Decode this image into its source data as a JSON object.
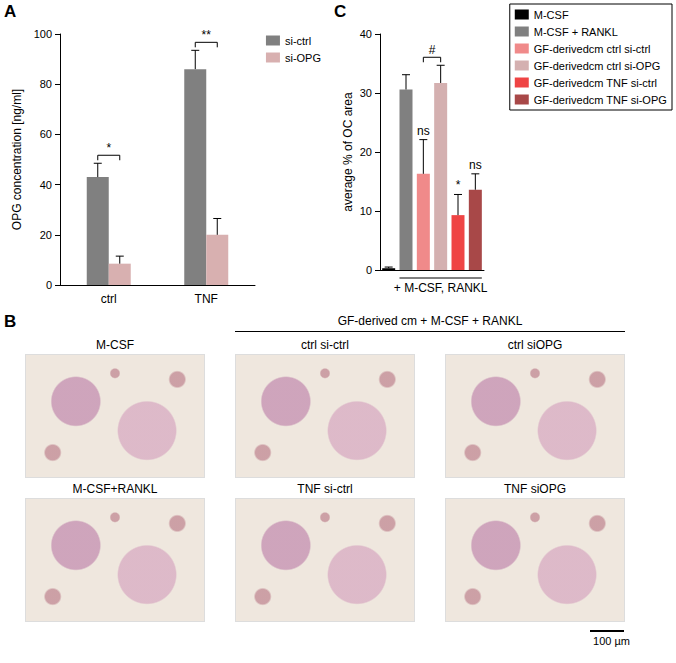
{
  "chart_data": [
    {
      "panel": "A",
      "type": "bar",
      "categories": [
        "ctrl",
        "TNF"
      ],
      "series": [
        {
          "name": "si-ctrl",
          "color": "#808080",
          "values": [
            43,
            86
          ],
          "errors": [
            5.5,
            7.5
          ]
        },
        {
          "name": "si-OPG",
          "color": "#d8b0b0",
          "values": [
            8.5,
            20
          ],
          "errors": [
            3,
            6.5
          ]
        }
      ],
      "y_label": "OPG concentration [ng/ml]",
      "ylim": [
        0,
        100
      ],
      "yticks": [
        0,
        20,
        40,
        60,
        80,
        100
      ],
      "grid": false,
      "legend": "top-right",
      "annotations": [
        {
          "text": "*",
          "category": "ctrl",
          "between": [
            "si-ctrl",
            "si-OPG"
          ]
        },
        {
          "text": "**",
          "category": "TNF",
          "between": [
            "si-ctrl",
            "si-OPG"
          ]
        }
      ]
    },
    {
      "panel": "C",
      "type": "bar",
      "categories": [
        "M-CSF",
        "M-CSF + RANKL",
        "GF-derivedcm ctrl si-ctrl",
        "GF-derivedcm ctrl si-OPG",
        "GF-derivedcm TNF si-ctrl",
        "GF-derivedcm TNF si-OPG"
      ],
      "values": [
        0.3,
        30.6,
        16.3,
        31.7,
        9.3,
        13.6
      ],
      "errors": [
        0.2,
        2.5,
        5.8,
        3,
        3.5,
        2.7
      ],
      "colors": [
        "#000000",
        "#808080",
        "#f08a8a",
        "#d4b0b0",
        "#ef4444",
        "#a84848"
      ],
      "y_label": "average % of OC area",
      "ylim": [
        0,
        40
      ],
      "yticks": [
        0,
        10,
        20,
        30,
        40
      ],
      "grid": false,
      "legend": "top-right",
      "tick_labels": "y",
      "annotations": [
        {
          "text": "ns",
          "category": "GF-derivedcm ctrl si-ctrl"
        },
        {
          "text": "*",
          "category": "GF-derivedcm TNF si-ctrl"
        },
        {
          "text": "ns",
          "category": "GF-derivedcm TNF si-OPG"
        }
      ],
      "brackets": [
        {
          "text": "#",
          "from": "GF-derivedcm ctrl si-ctrl",
          "to": "GF-derivedcm ctrl si-OPG"
        }
      ],
      "group_label": {
        "text": "+ M-CSF, RANKL",
        "from": "M-CSF + RANKL",
        "to": "GF-derivedcm TNF si-OPG"
      }
    }
  ],
  "image_panel": {
    "panel": "B",
    "heading": "GF-derived cm + M-CSF + RANKL",
    "images": [
      "M-CSF",
      "ctrl si-ctrl",
      "ctrl siOPG",
      "M-CSF+RANKL",
      "TNF si-ctrl",
      "TNF siOPG"
    ],
    "scale_bar": "100 µm"
  }
}
